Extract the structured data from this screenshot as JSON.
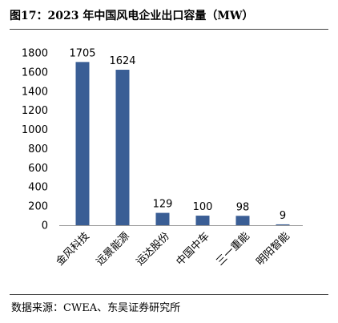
{
  "figure": {
    "title": "图17：2023 年中国风电企业出口容量（MW）",
    "source": "数据来源：CWEA、东吴证券研究所"
  },
  "chart_data": {
    "type": "bar",
    "title": "",
    "xlabel": "",
    "ylabel": "",
    "categories": [
      "金风科技",
      "远景能源",
      "运达股份",
      "中国中车",
      "三一重能",
      "明阳智能"
    ],
    "values": [
      1705,
      1624,
      129,
      100,
      98,
      9
    ],
    "ylim": [
      0,
      1800
    ],
    "yticks": [
      0,
      200,
      400,
      600,
      800,
      1000,
      1200,
      1400,
      1600,
      1800
    ],
    "bar_color": "#3a5e95",
    "grid": false,
    "legend": "none"
  }
}
